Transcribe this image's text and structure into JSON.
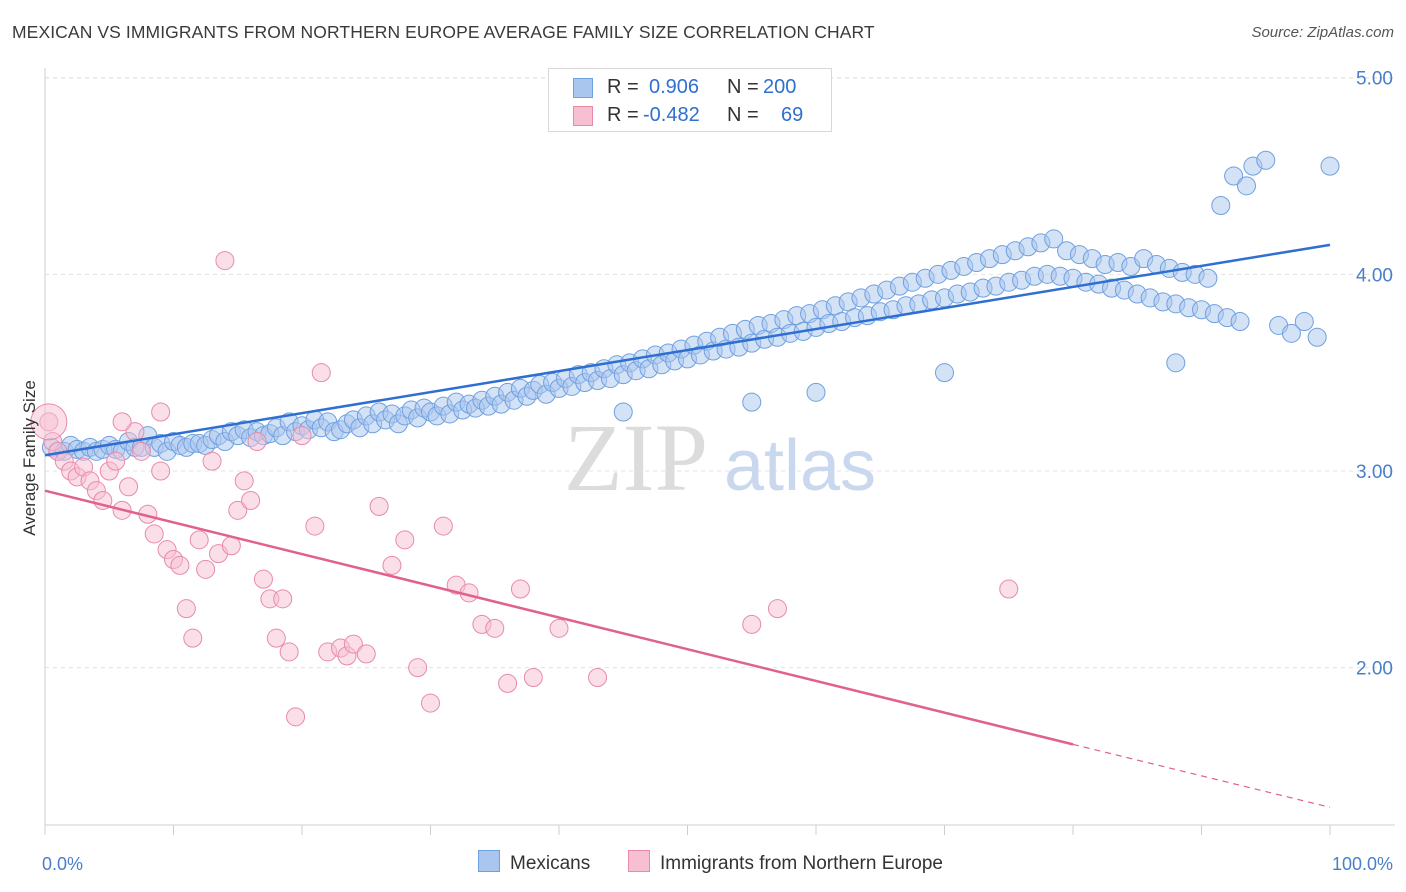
{
  "title": "MEXICAN VS IMMIGRANTS FROM NORTHERN EUROPE AVERAGE FAMILY SIZE CORRELATION CHART",
  "source": "Source: ZipAtlas.com",
  "watermark": {
    "zip": "ZIP",
    "atlas": "atlas"
  },
  "legend": {
    "rows": [
      {
        "r_label": "R =",
        "r_value": "0.906",
        "n_label": "N =",
        "n_value": "200"
      },
      {
        "r_label": "R =",
        "r_value": "-0.482",
        "n_label": "N =",
        "n_value": "69"
      }
    ]
  },
  "chart_data": {
    "type": "scatter",
    "title": "MEXICAN VS IMMIGRANTS FROM NORTHERN EUROPE AVERAGE FAMILY SIZE CORRELATION CHART",
    "xlabel": "",
    "ylabel": "Average Family Size",
    "xlim": [
      0,
      100
    ],
    "ylim": [
      1.2,
      5.1
    ],
    "x_tick_labels": [
      "0.0%",
      "100.0%"
    ],
    "y_ticks": [
      2.0,
      3.0,
      4.0,
      5.0
    ],
    "y_tick_labels": [
      "2.00",
      "3.00",
      "4.00",
      "5.00"
    ],
    "grid": true,
    "legend_placement": "top-center",
    "series": [
      {
        "name": "Mexicans",
        "color": "#6fa0e0",
        "fill": "#a9c6ee",
        "line_color": "#2e6fd1",
        "R": 0.906,
        "N": 200,
        "trend": {
          "x": [
            0,
            100
          ],
          "y": [
            3.08,
            4.15
          ]
        },
        "points": [
          [
            0.5,
            3.12
          ],
          [
            1,
            3.1
          ],
          [
            1.5,
            3.1
          ],
          [
            2,
            3.13
          ],
          [
            2.5,
            3.11
          ],
          [
            3,
            3.1
          ],
          [
            3.5,
            3.12
          ],
          [
            4,
            3.1
          ],
          [
            4.5,
            3.11
          ],
          [
            5,
            3.13
          ],
          [
            5.5,
            3.11
          ],
          [
            6,
            3.1
          ],
          [
            6.5,
            3.15
          ],
          [
            7,
            3.12
          ],
          [
            7.5,
            3.12
          ],
          [
            8,
            3.18
          ],
          [
            8.5,
            3.12
          ],
          [
            9,
            3.14
          ],
          [
            9.5,
            3.1
          ],
          [
            10,
            3.15
          ],
          [
            10.5,
            3.13
          ],
          [
            11,
            3.12
          ],
          [
            11.5,
            3.14
          ],
          [
            12,
            3.14
          ],
          [
            12.5,
            3.13
          ],
          [
            13,
            3.16
          ],
          [
            13.5,
            3.18
          ],
          [
            14,
            3.15
          ],
          [
            14.5,
            3.2
          ],
          [
            15,
            3.18
          ],
          [
            15.5,
            3.21
          ],
          [
            16,
            3.17
          ],
          [
            16.5,
            3.2
          ],
          [
            17,
            3.18
          ],
          [
            17.5,
            3.19
          ],
          [
            18,
            3.22
          ],
          [
            18.5,
            3.18
          ],
          [
            19,
            3.25
          ],
          [
            19.5,
            3.2
          ],
          [
            20,
            3.23
          ],
          [
            20.5,
            3.21
          ],
          [
            21,
            3.26
          ],
          [
            21.5,
            3.22
          ],
          [
            22,
            3.25
          ],
          [
            22.5,
            3.2
          ],
          [
            23,
            3.21
          ],
          [
            23.5,
            3.24
          ],
          [
            24,
            3.26
          ],
          [
            24.5,
            3.22
          ],
          [
            25,
            3.28
          ],
          [
            25.5,
            3.24
          ],
          [
            26,
            3.3
          ],
          [
            26.5,
            3.26
          ],
          [
            27,
            3.29
          ],
          [
            27.5,
            3.24
          ],
          [
            28,
            3.28
          ],
          [
            28.5,
            3.31
          ],
          [
            29,
            3.27
          ],
          [
            29.5,
            3.32
          ],
          [
            30,
            3.3
          ],
          [
            30.5,
            3.28
          ],
          [
            31,
            3.33
          ],
          [
            31.5,
            3.29
          ],
          [
            32,
            3.35
          ],
          [
            32.5,
            3.31
          ],
          [
            33,
            3.34
          ],
          [
            33.5,
            3.32
          ],
          [
            34,
            3.36
          ],
          [
            34.5,
            3.33
          ],
          [
            35,
            3.38
          ],
          [
            35.5,
            3.34
          ],
          [
            36,
            3.4
          ],
          [
            36.5,
            3.36
          ],
          [
            37,
            3.42
          ],
          [
            37.5,
            3.38
          ],
          [
            38,
            3.41
          ],
          [
            38.5,
            3.44
          ],
          [
            39,
            3.39
          ],
          [
            39.5,
            3.45
          ],
          [
            40,
            3.42
          ],
          [
            40.5,
            3.47
          ],
          [
            41,
            3.43
          ],
          [
            41.5,
            3.49
          ],
          [
            42,
            3.45
          ],
          [
            42.5,
            3.5
          ],
          [
            43,
            3.46
          ],
          [
            43.5,
            3.52
          ],
          [
            44,
            3.47
          ],
          [
            44.5,
            3.54
          ],
          [
            45,
            3.49
          ],
          [
            45.5,
            3.55
          ],
          [
            46,
            3.51
          ],
          [
            46.5,
            3.57
          ],
          [
            47,
            3.52
          ],
          [
            47.5,
            3.59
          ],
          [
            48,
            3.54
          ],
          [
            48.5,
            3.6
          ],
          [
            49,
            3.56
          ],
          [
            49.5,
            3.62
          ],
          [
            50,
            3.57
          ],
          [
            50.5,
            3.64
          ],
          [
            51,
            3.59
          ],
          [
            51.5,
            3.66
          ],
          [
            52,
            3.61
          ],
          [
            52.5,
            3.68
          ],
          [
            53,
            3.62
          ],
          [
            53.5,
            3.7
          ],
          [
            54,
            3.63
          ],
          [
            54.5,
            3.72
          ],
          [
            55,
            3.65
          ],
          [
            55.5,
            3.74
          ],
          [
            56,
            3.67
          ],
          [
            56.5,
            3.75
          ],
          [
            57,
            3.68
          ],
          [
            57.5,
            3.77
          ],
          [
            58,
            3.7
          ],
          [
            58.5,
            3.79
          ],
          [
            59,
            3.71
          ],
          [
            59.5,
            3.8
          ],
          [
            60,
            3.73
          ],
          [
            60.5,
            3.82
          ],
          [
            61,
            3.75
          ],
          [
            61.5,
            3.84
          ],
          [
            62,
            3.76
          ],
          [
            62.5,
            3.86
          ],
          [
            63,
            3.78
          ],
          [
            63.5,
            3.88
          ],
          [
            64,
            3.79
          ],
          [
            64.5,
            3.9
          ],
          [
            65,
            3.81
          ],
          [
            65.5,
            3.92
          ],
          [
            66,
            3.82
          ],
          [
            66.5,
            3.94
          ],
          [
            67,
            3.84
          ],
          [
            67.5,
            3.96
          ],
          [
            68,
            3.85
          ],
          [
            68.5,
            3.98
          ],
          [
            69,
            3.87
          ],
          [
            69.5,
            4.0
          ],
          [
            70,
            3.88
          ],
          [
            70.5,
            4.02
          ],
          [
            71,
            3.9
          ],
          [
            71.5,
            4.04
          ],
          [
            72,
            3.91
          ],
          [
            72.5,
            4.06
          ],
          [
            73,
            3.93
          ],
          [
            73.5,
            4.08
          ],
          [
            74,
            3.94
          ],
          [
            74.5,
            4.1
          ],
          [
            75,
            3.96
          ],
          [
            75.5,
            4.12
          ],
          [
            76,
            3.97
          ],
          [
            76.5,
            4.14
          ],
          [
            77,
            3.99
          ],
          [
            77.5,
            4.16
          ],
          [
            78,
            4.0
          ],
          [
            78.5,
            4.18
          ],
          [
            79,
            3.99
          ],
          [
            79.5,
            4.12
          ],
          [
            80,
            3.98
          ],
          [
            80.5,
            4.1
          ],
          [
            81,
            3.96
          ],
          [
            81.5,
            4.08
          ],
          [
            82,
            3.95
          ],
          [
            82.5,
            4.05
          ],
          [
            83,
            3.93
          ],
          [
            83.5,
            4.06
          ],
          [
            84,
            3.92
          ],
          [
            84.5,
            4.04
          ],
          [
            85,
            3.9
          ],
          [
            85.5,
            4.08
          ],
          [
            86,
            3.88
          ],
          [
            86.5,
            4.05
          ],
          [
            87,
            3.86
          ],
          [
            87.5,
            4.03
          ],
          [
            88,
            3.85
          ],
          [
            88.5,
            4.01
          ],
          [
            89,
            3.83
          ],
          [
            89.5,
            4.0
          ],
          [
            90,
            3.82
          ],
          [
            90.5,
            3.98
          ],
          [
            91,
            3.8
          ],
          [
            91.5,
            4.35
          ],
          [
            92,
            3.78
          ],
          [
            92.5,
            4.5
          ],
          [
            93,
            3.76
          ],
          [
            93.5,
            4.45
          ],
          [
            94,
            4.55
          ],
          [
            95,
            4.58
          ],
          [
            96,
            3.74
          ],
          [
            97,
            3.7
          ],
          [
            98,
            3.76
          ],
          [
            99,
            3.68
          ],
          [
            100,
            4.55
          ],
          [
            45,
            3.3
          ],
          [
            55,
            3.35
          ],
          [
            60,
            3.4
          ],
          [
            70,
            3.5
          ],
          [
            88,
            3.55
          ]
        ]
      },
      {
        "name": "Immigrants from Northern Europe",
        "color": "#e98aab",
        "fill": "#f6bfd2",
        "line_color": "#e0608e",
        "R": -0.482,
        "N": 69,
        "trend": {
          "x": [
            0,
            80
          ],
          "y": [
            2.9,
            1.61
          ]
        },
        "trend_dashed": {
          "x": [
            80,
            100
          ],
          "y": [
            1.61,
            1.29
          ]
        },
        "points": [
          [
            0.3,
            3.25
          ],
          [
            0.6,
            3.15
          ],
          [
            1,
            3.1
          ],
          [
            1.5,
            3.05
          ],
          [
            2,
            3.0
          ],
          [
            2.5,
            2.97
          ],
          [
            3,
            3.02
          ],
          [
            3.5,
            2.95
          ],
          [
            4,
            2.9
          ],
          [
            4.5,
            2.85
          ],
          [
            5,
            3.0
          ],
          [
            5.5,
            3.05
          ],
          [
            6,
            2.8
          ],
          [
            6.5,
            2.92
          ],
          [
            7,
            3.2
          ],
          [
            7.5,
            3.1
          ],
          [
            8,
            2.78
          ],
          [
            8.5,
            2.68
          ],
          [
            9,
            3.0
          ],
          [
            9.5,
            2.6
          ],
          [
            10,
            2.55
          ],
          [
            10.5,
            2.52
          ],
          [
            11,
            2.3
          ],
          [
            11.5,
            2.15
          ],
          [
            12,
            2.65
          ],
          [
            12.5,
            2.5
          ],
          [
            13,
            3.05
          ],
          [
            13.5,
            2.58
          ],
          [
            14,
            4.07
          ],
          [
            14.5,
            2.62
          ],
          [
            15,
            2.8
          ],
          [
            15.5,
            2.95
          ],
          [
            16,
            2.85
          ],
          [
            16.5,
            3.15
          ],
          [
            17,
            2.45
          ],
          [
            17.5,
            2.35
          ],
          [
            18,
            2.15
          ],
          [
            18.5,
            2.35
          ],
          [
            19,
            2.08
          ],
          [
            19.5,
            1.75
          ],
          [
            20,
            3.18
          ],
          [
            21,
            2.72
          ],
          [
            21.5,
            3.5
          ],
          [
            22,
            2.08
          ],
          [
            23,
            2.1
          ],
          [
            23.5,
            2.06
          ],
          [
            24,
            2.12
          ],
          [
            25,
            2.07
          ],
          [
            26,
            2.82
          ],
          [
            27,
            2.52
          ],
          [
            28,
            2.65
          ],
          [
            29,
            2.0
          ],
          [
            30,
            1.82
          ],
          [
            31,
            2.72
          ],
          [
            32,
            2.42
          ],
          [
            33,
            2.38
          ],
          [
            34,
            2.22
          ],
          [
            35,
            2.2
          ],
          [
            36,
            1.92
          ],
          [
            37,
            2.4
          ],
          [
            38,
            1.95
          ],
          [
            40,
            2.2
          ],
          [
            43,
            1.95
          ],
          [
            55,
            2.22
          ],
          [
            57,
            2.3
          ],
          [
            75,
            2.4
          ],
          [
            9,
            3.3
          ],
          [
            6,
            3.25
          ]
        ]
      }
    ]
  }
}
